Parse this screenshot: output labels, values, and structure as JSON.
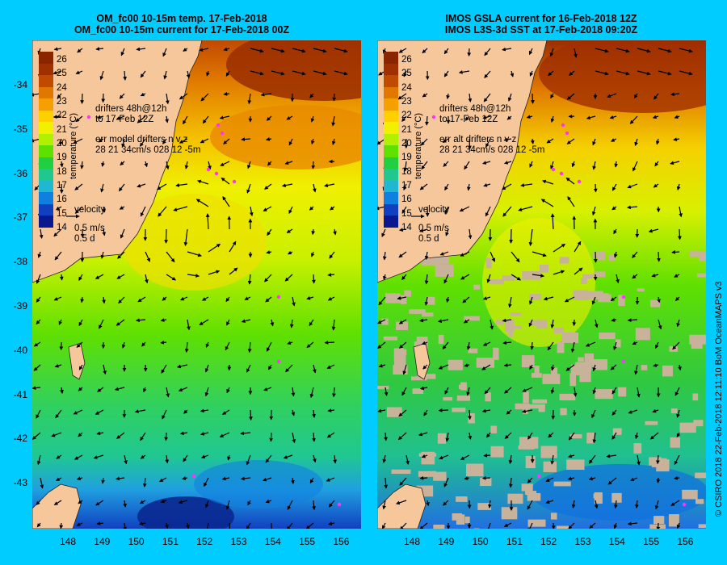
{
  "panels": [
    {
      "title_line1": "OM_fc00 10-15m temp. 17-Feb-2018",
      "title_line2": "OM_fc00 10-15m current for 17-Feb-2018 00Z",
      "drifters_line1": "drifters 48h@12h",
      "drifters_line2": "to 17-Feb 12Z",
      "err_line1": "err model drifters n v z",
      "err_line2": "28 21 34cm/s 028 12 -5m"
    },
    {
      "title_line1": "IMOS GSLA current for 16-Feb-2018 12Z",
      "title_line2": "IMOS L3S-3d SST at 17-Feb-2018 09:20Z",
      "drifters_line1": "drifters 48h@12h",
      "drifters_line2": "to 17-Feb 12Z",
      "err_line1": "err alt drifters n v z",
      "err_line2": "28 21 34cm/s 028 12 -5m"
    }
  ],
  "velocity": {
    "label": "velocity",
    "speed": "0.5 m/s",
    "duration": "0.5 d"
  },
  "colorbar": {
    "title": "temperature (°C)",
    "ticks": [
      "26",
      "25",
      "24",
      "23",
      "22",
      "21",
      "20",
      "19",
      "18",
      "17",
      "16",
      "15",
      "14"
    ],
    "colors": [
      "#8b2500",
      "#a03000",
      "#c04a00",
      "#e07800",
      "#f5a000",
      "#ffd000",
      "#f0f000",
      "#b0f000",
      "#60e000",
      "#20d040",
      "#20c890",
      "#20b8d0",
      "#1080e0",
      "#1040c0",
      "#0a1890"
    ]
  },
  "axes": {
    "lat_ticks": [
      "-34",
      "-35",
      "-36",
      "-37",
      "-38",
      "-39",
      "-40",
      "-41",
      "-42",
      "-43"
    ],
    "lon_ticks": [
      "148",
      "149",
      "150",
      "151",
      "152",
      "153",
      "154",
      "155",
      "156"
    ]
  },
  "credit": "© CSIRO 2018   22-Feb-2018 12:11:10 BoM OceanMAPS v3",
  "colors": {
    "background": "#00ccff",
    "land": "#f6c79a",
    "cloud": "#c8b29a",
    "drifter": "#ff33ff"
  }
}
